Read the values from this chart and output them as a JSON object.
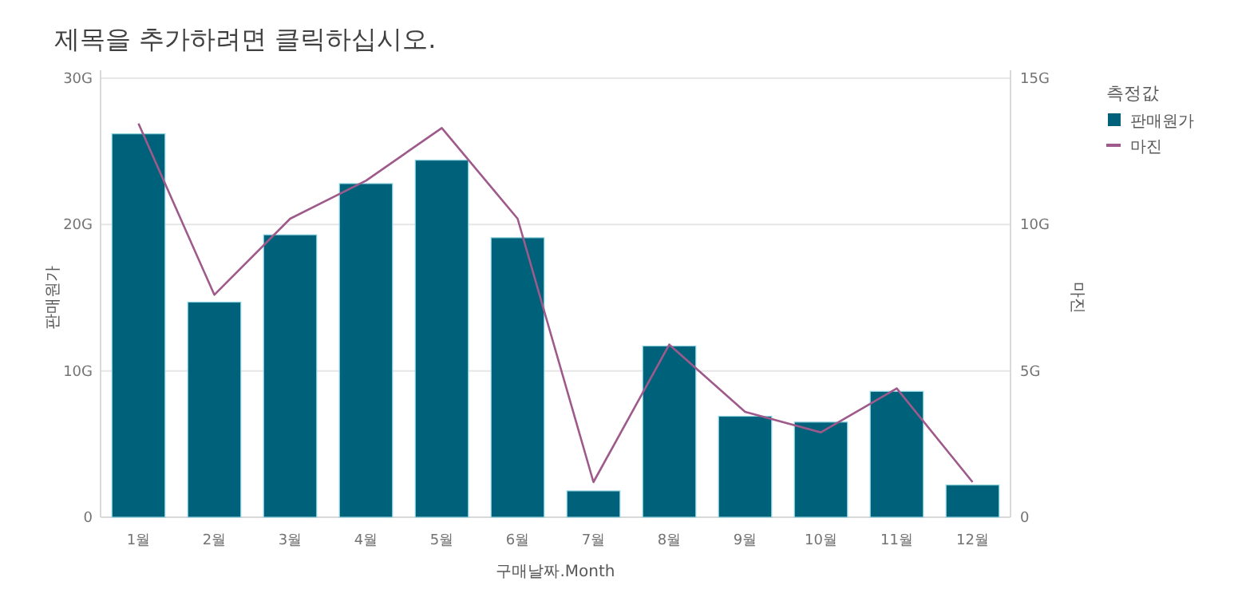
{
  "chart_data": {
    "type": "bar",
    "title": "제목을 추가하려면 클릭하십시오.",
    "xlabel": "구매날짜.Month",
    "ylabel": "판매원가",
    "y2label": "마진",
    "legend_title": "측정값",
    "categories": [
      "1월",
      "2월",
      "3월",
      "4월",
      "5월",
      "6월",
      "7월",
      "8월",
      "9월",
      "10월",
      "11월",
      "12월"
    ],
    "series": [
      {
        "name": "판매원가",
        "color": "#00627a",
        "values": [
          26.2,
          14.7,
          19.3,
          22.8,
          24.4,
          19.1,
          1.8,
          11.7,
          6.9,
          6.5,
          8.6,
          2.2
        ]
      },
      {
        "name": "마진",
        "type": "line",
        "axis": "y2",
        "color": "#9e5a8a",
        "values": [
          13.45,
          7.6,
          10.2,
          11.5,
          13.3,
          10.2,
          1.2,
          5.9,
          3.6,
          2.9,
          4.4,
          1.2
        ]
      }
    ],
    "ylim": [
      0,
      30
    ],
    "yticks": [
      0,
      {
        "value": 10,
        "label": "10G"
      },
      {
        "value": 20,
        "label": "20G"
      },
      {
        "value": 30,
        "label": "30G"
      }
    ],
    "y2lim": [
      0,
      15
    ],
    "y2ticks": [
      0,
      {
        "value": 5,
        "label": "5G"
      },
      {
        "value": 10,
        "label": "10G"
      },
      {
        "value": 15,
        "label": "15G"
      }
    ],
    "grid": "y",
    "legend": "top right",
    "marker": "none",
    "line_style": "solid"
  }
}
